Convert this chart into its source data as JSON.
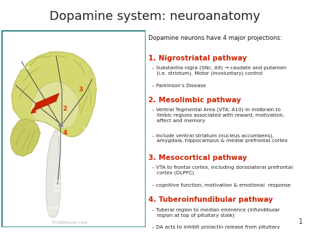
{
  "title": "Dopamine system: neuroanatomy",
  "title_fontsize": 13,
  "title_color": "#222222",
  "bg_color": "#ffffff",
  "right_panel_header": "Dopamine neurons have 4 major projections:",
  "pathways": [
    {
      "number": "1.",
      "name": " Nigrostriatal pathway",
      "color": "#cc2200",
      "bullets": [
        "– Substantia nigra (SNc; A9) → caudate and putamen\n   (i.e. striotum). Motor (involuntary) control",
        "– Parkinson’s Disease"
      ]
    },
    {
      "number": "2.",
      "name": " Mesolimbic pathway",
      "color": "#cc2200",
      "bullets": [
        "– Ventral Tegmental Area (VTA; A10) in midbrain to\n   limbic regions associated with reward, motivation,\n   affect and memory",
        "– Include ventral striatum (nucleus accumbens),\n   amygdala, hippocampus & medial prefrontal cortex"
      ]
    },
    {
      "number": "3.",
      "name": " Mesocortical pathway",
      "color": "#cc2200",
      "bullets": [
        "– VTA to frontal cortex, including dorsolateral prefrontal\n   cortex (DLPFC)",
        "– cognitive function, motivation & emotional  response"
      ]
    },
    {
      "number": "4.",
      "name": " Tuberoinfundibular pathway",
      "color": "#cc2200",
      "bullets": [
        "– Tuberal region to median eminence (infundibular\n   region at top of pituitary stalk)",
        "– DA acts to inhibit prolactin release from pituitary"
      ]
    }
  ],
  "left_panel_bg": "#1b2f4a",
  "page_number": "1"
}
